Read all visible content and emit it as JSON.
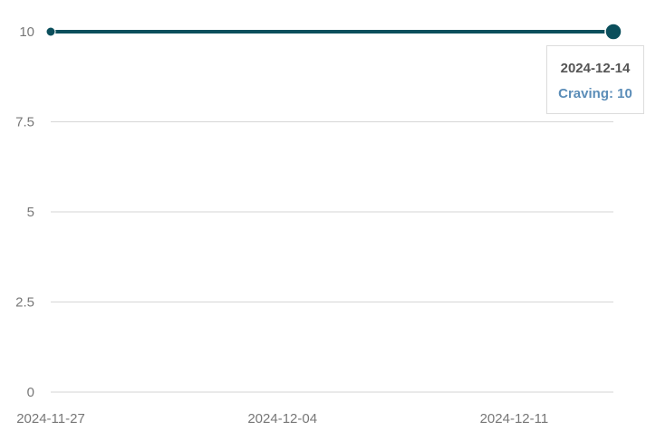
{
  "chart_data": {
    "type": "line",
    "title": "",
    "xlabel": "",
    "ylabel": "",
    "x": [
      "2024-11-27",
      "2024-12-14"
    ],
    "series": [
      {
        "name": "Craving",
        "values": [
          10,
          10
        ]
      }
    ],
    "ylim": [
      0,
      10
    ],
    "y_ticks": [
      "0",
      "2.5",
      "5",
      "7.5",
      "10"
    ],
    "x_ticks": [
      "2024-11-27",
      "2024-12-04",
      "2024-12-11"
    ],
    "grid": true,
    "colors": {
      "line": "#0b4f5c",
      "grid": "#d6d6d6",
      "tick_text": "#777777",
      "tooltip_value": "#5b8db8"
    },
    "tooltip": {
      "date": "2024-12-14",
      "label": "Craving: 10"
    }
  }
}
